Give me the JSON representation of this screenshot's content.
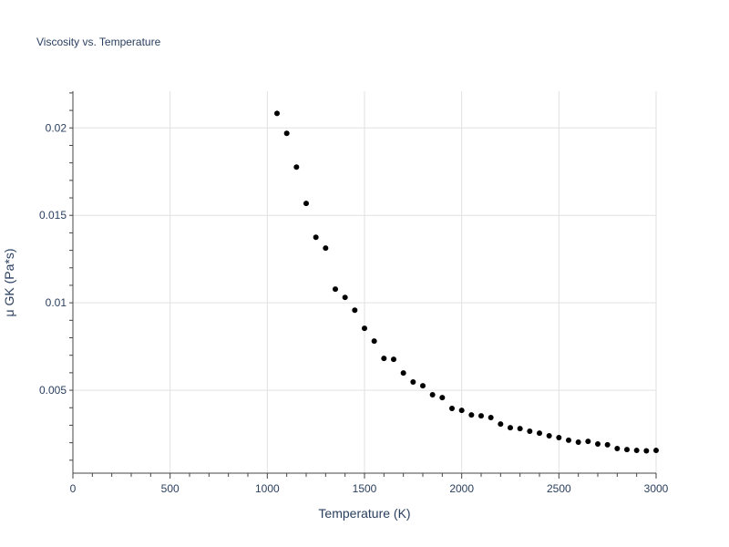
{
  "chart_data": {
    "type": "scatter",
    "title": "Viscosity vs. Temperature",
    "xlabel": "Temperature (K)",
    "ylabel": "μ GK (Pa*s)",
    "xlim": [
      0,
      3000
    ],
    "ylim": [
      0.00026,
      0.0221
    ],
    "xticks": [
      0,
      500,
      1000,
      1500,
      2000,
      2500,
      3000
    ],
    "xtick_labels": [
      "0",
      "500",
      "1000",
      "1500",
      "2000",
      "2500",
      "3000"
    ],
    "yticks": [
      0.005,
      0.01,
      0.015,
      0.02
    ],
    "ytick_labels": [
      "0.005",
      "0.01",
      "0.015",
      "0.02"
    ],
    "grid": true,
    "marker_color": "#000000",
    "x": [
      1050,
      1100,
      1150,
      1200,
      1250,
      1300,
      1350,
      1400,
      1450,
      1500,
      1550,
      1600,
      1650,
      1700,
      1750,
      1800,
      1850,
      1900,
      1950,
      2000,
      2050,
      2100,
      2150,
      2200,
      2250,
      2300,
      2350,
      2400,
      2450,
      2500,
      2550,
      2600,
      2650,
      2700,
      2750,
      2800,
      2850,
      2900,
      2950,
      3000
    ],
    "y": [
      0.02083,
      0.01969,
      0.01776,
      0.01568,
      0.01375,
      0.01313,
      0.01078,
      0.01031,
      0.00958,
      0.00854,
      0.00781,
      0.00682,
      0.00677,
      0.00599,
      0.00547,
      0.00526,
      0.00474,
      0.00458,
      0.00396,
      0.00385,
      0.00359,
      0.00354,
      0.00344,
      0.00307,
      0.00286,
      0.00281,
      0.00266,
      0.00255,
      0.0024,
      0.00229,
      0.00214,
      0.00203,
      0.00208,
      0.00193,
      0.00188,
      0.00167,
      0.00161,
      0.00156,
      0.00154,
      0.00156
    ]
  }
}
